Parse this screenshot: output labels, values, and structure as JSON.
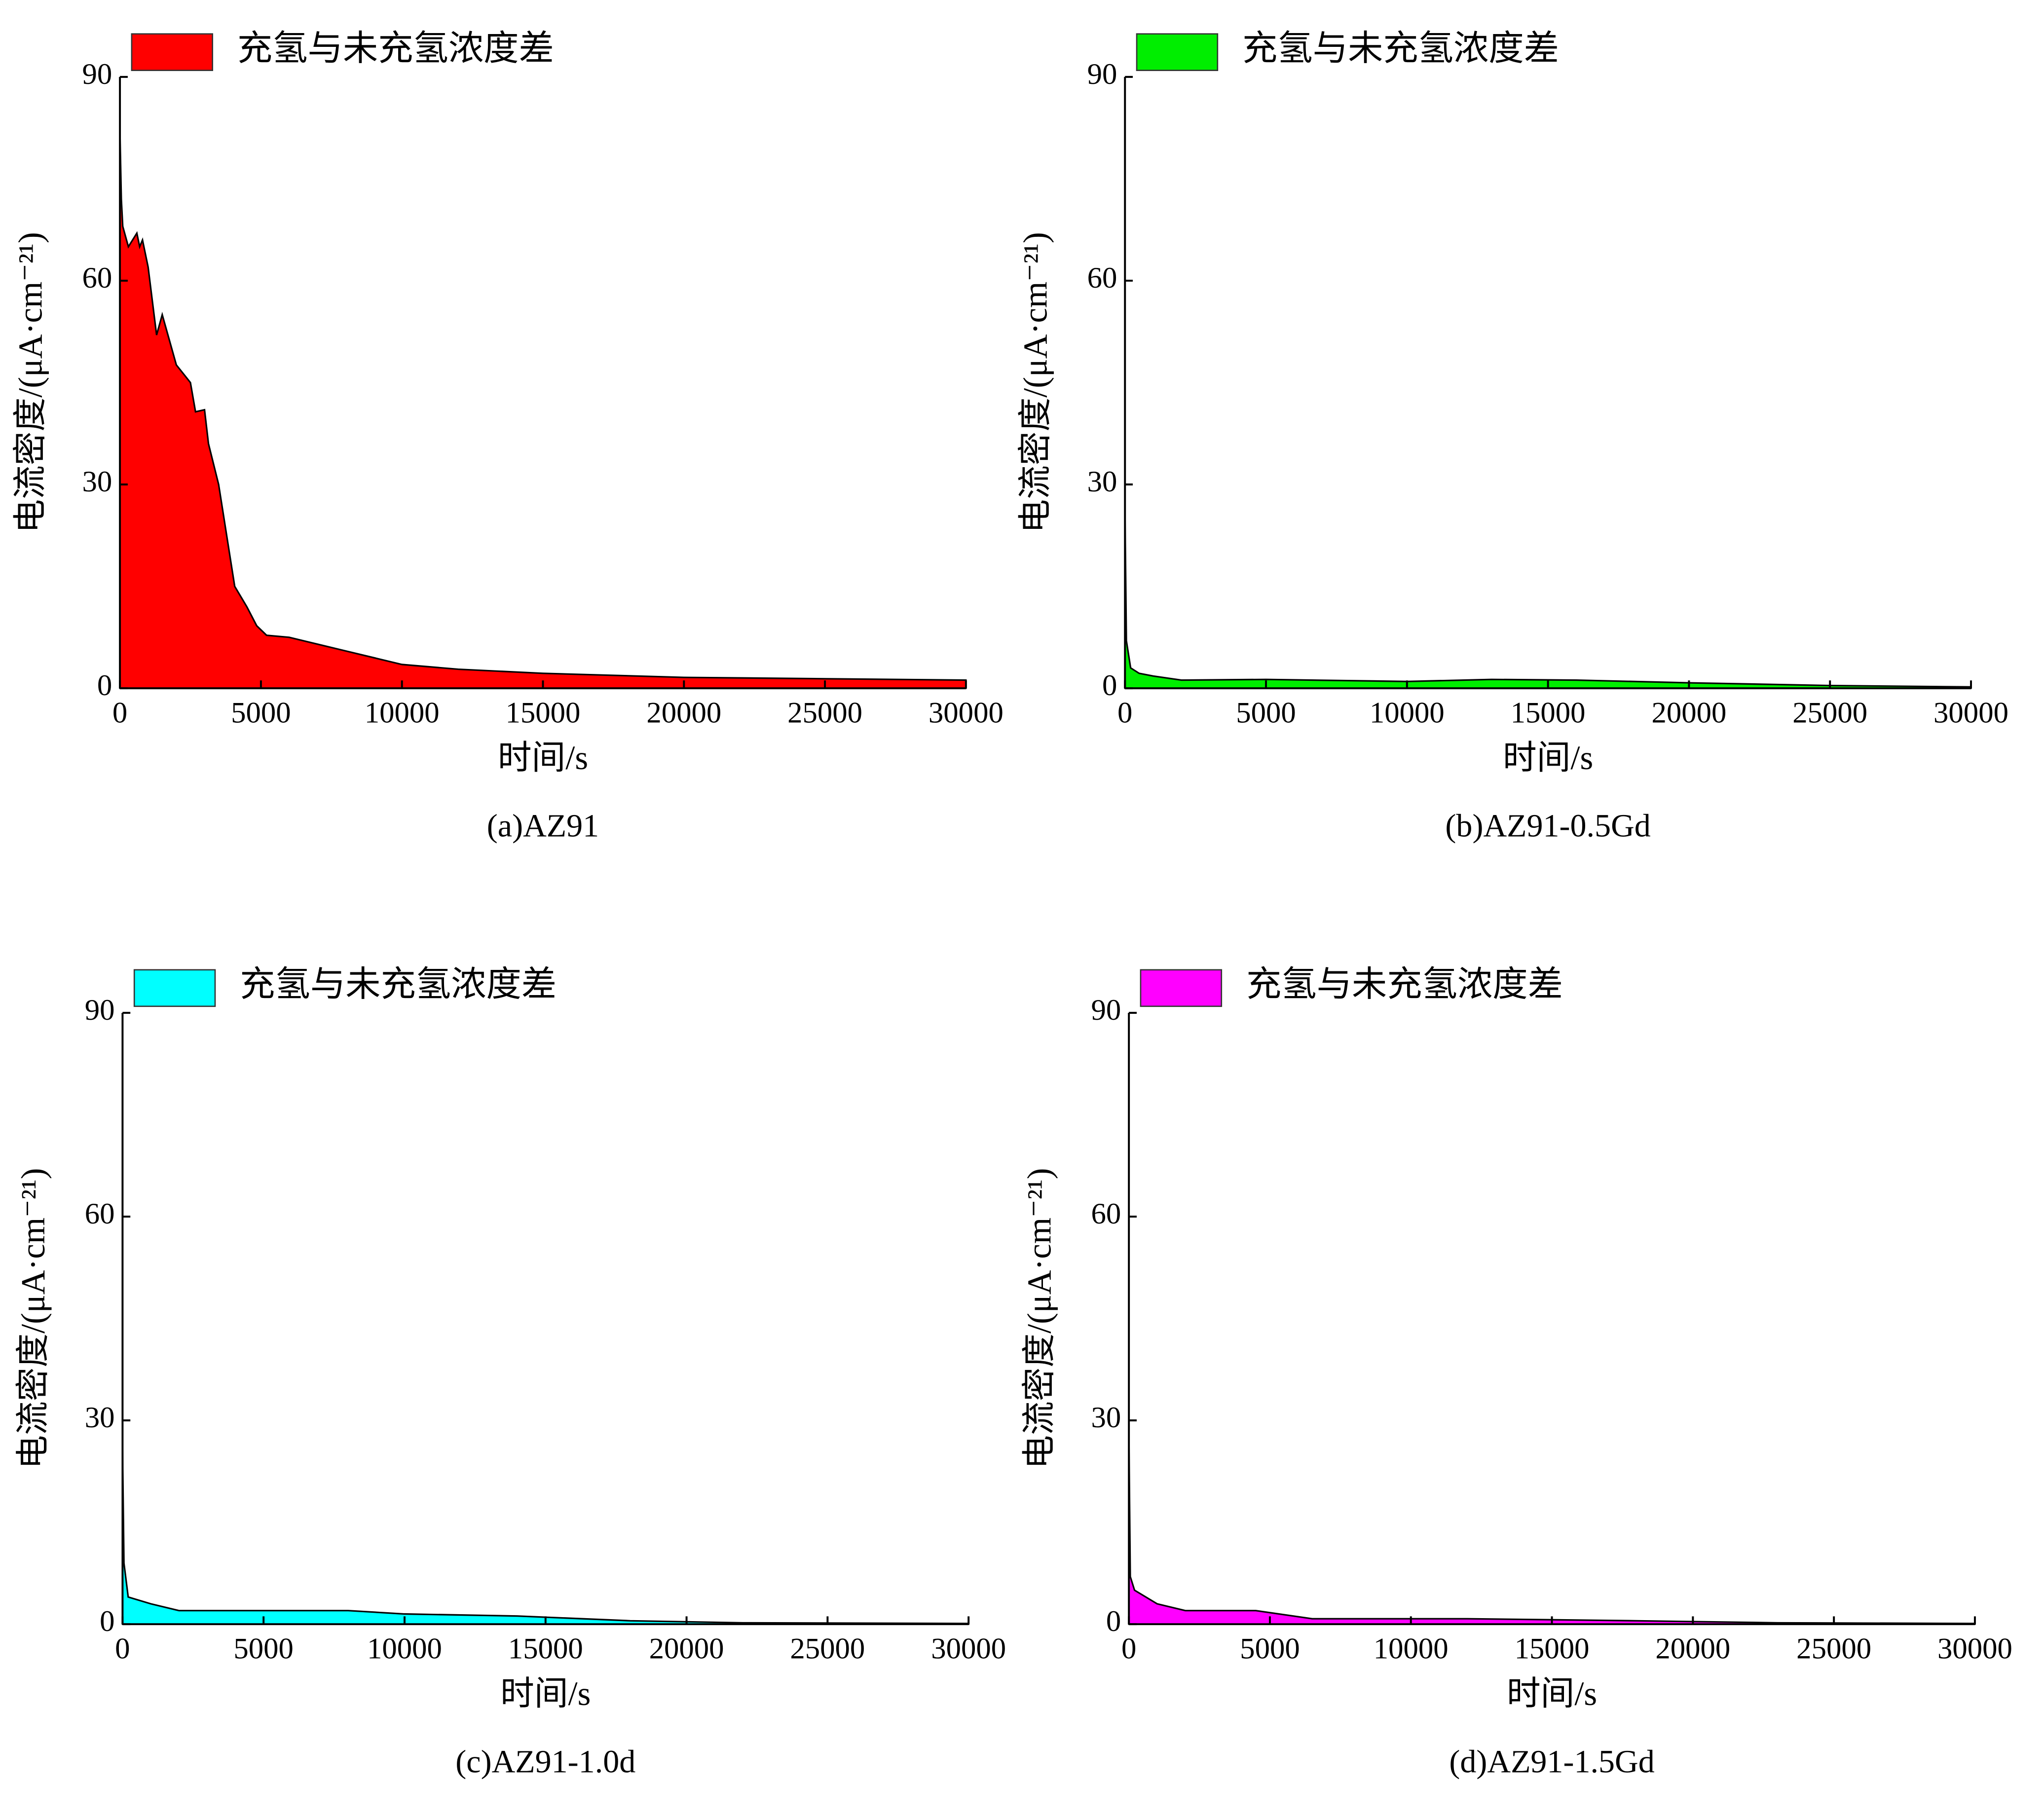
{
  "chart_data": [
    {
      "type": "area",
      "caption": "(a)AZ91",
      "x_label": "时间/s",
      "y_label": "电流密度/(μA·cm⁻²¹)",
      "xlim": [
        0,
        30000
      ],
      "ylim": [
        0,
        90
      ],
      "xticks": [
        0,
        5000,
        10000,
        15000,
        20000,
        25000,
        30000
      ],
      "yticks": [
        0,
        30,
        60,
        90
      ],
      "x": [
        0,
        50,
        100,
        300,
        600,
        700,
        800,
        1000,
        1300,
        1500,
        2000,
        2500,
        2680,
        3000,
        3140,
        3500,
        4070,
        4500,
        4850,
        5200,
        6000,
        8000,
        10000,
        12000,
        15000,
        20000,
        25000,
        30000
      ],
      "series": [
        {
          "name": "充氢与未充氢浓度差",
          "color": "#ff0000",
          "values": [
            82,
            72,
            68,
            65,
            67,
            65,
            66,
            62,
            52,
            55,
            47.6,
            45,
            40.7,
            41,
            36,
            30,
            15,
            12,
            9.2,
            7.8,
            7.5,
            5.5,
            3.5,
            2.8,
            2.2,
            1.6,
            1.4,
            1.2
          ]
        }
      ]
    },
    {
      "type": "area",
      "caption": "(b)AZ91-0.5Gd",
      "x_label": "时间/s",
      "y_label": "电流密度/(μA·cm⁻²¹)",
      "xlim": [
        0,
        30000
      ],
      "ylim": [
        0,
        90
      ],
      "xticks": [
        0,
        5000,
        10000,
        15000,
        20000,
        25000,
        30000
      ],
      "yticks": [
        0,
        30,
        60,
        90
      ],
      "x": [
        0,
        50,
        200,
        500,
        1000,
        2000,
        5000,
        10000,
        13000,
        16000,
        20000,
        25000,
        30000
      ],
      "series": [
        {
          "name": "充氢与未充氢浓度差",
          "color": "#00ee00",
          "values": [
            26,
            7,
            3,
            2.2,
            1.8,
            1.2,
            1.3,
            1.0,
            1.3,
            1.2,
            0.8,
            0.4,
            0.2
          ]
        }
      ]
    },
    {
      "type": "area",
      "caption": "(c)AZ91-1.0d",
      "x_label": "时间/s",
      "y_label": "电流密度/(μA·cm⁻²¹)",
      "xlim": [
        0,
        30000
      ],
      "ylim": [
        0,
        90
      ],
      "xticks": [
        0,
        5000,
        10000,
        15000,
        20000,
        25000,
        30000
      ],
      "yticks": [
        0,
        30,
        60,
        90
      ],
      "x": [
        0,
        50,
        200,
        1000,
        2000,
        8000,
        10000,
        14000,
        18000,
        22000,
        30000
      ],
      "series": [
        {
          "name": "充氢与未充氢浓度差",
          "color": "#00ffff",
          "values": [
            26,
            9,
            4,
            3,
            2,
            2,
            1.5,
            1.2,
            0.5,
            0.2,
            0.1
          ]
        }
      ]
    },
    {
      "type": "area",
      "caption": "(d)AZ91-1.5Gd",
      "x_label": "时间/s",
      "y_label": "电流密度/(μA·cm⁻²¹)",
      "xlim": [
        0,
        30000
      ],
      "ylim": [
        0,
        90
      ],
      "xticks": [
        0,
        5000,
        10000,
        15000,
        20000,
        25000,
        30000
      ],
      "yticks": [
        0,
        30,
        60,
        90
      ],
      "x": [
        0,
        50,
        200,
        1000,
        2000,
        4500,
        6500,
        12000,
        18000,
        23000,
        30000
      ],
      "series": [
        {
          "name": "充氢与未充氢浓度差",
          "color": "#ff00ff",
          "values": [
            28,
            7,
            5,
            3,
            2,
            2,
            0.8,
            0.8,
            0.5,
            0.2,
            0.1
          ]
        }
      ]
    }
  ]
}
